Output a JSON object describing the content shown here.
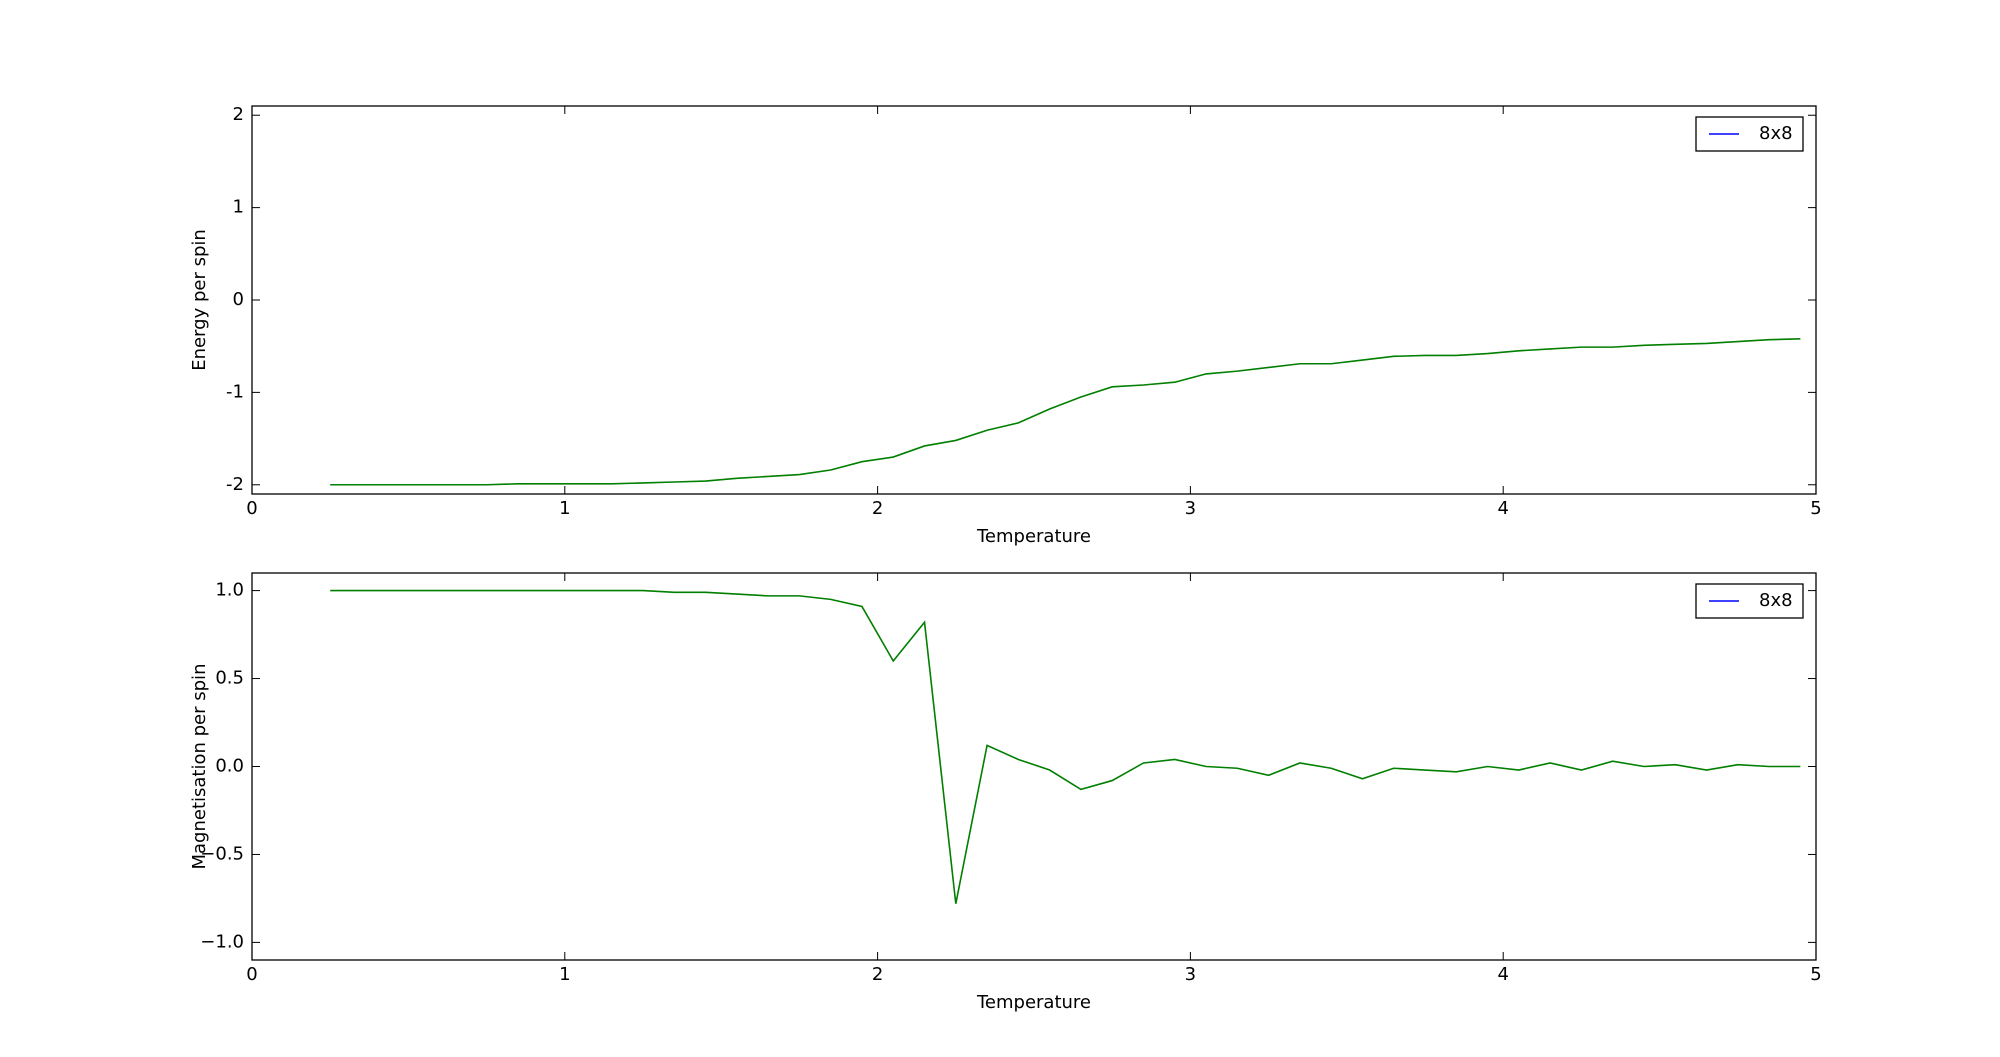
{
  "chart_data": [
    {
      "type": "line",
      "xlabel": "Temperature",
      "ylabel": "Energy per spin",
      "x": [
        0.25,
        0.35,
        0.45,
        0.55,
        0.65,
        0.75,
        0.85,
        0.95,
        1.05,
        1.15,
        1.25,
        1.35,
        1.45,
        1.55,
        1.65,
        1.75,
        1.85,
        1.95,
        2.05,
        2.15,
        2.25,
        2.35,
        2.45,
        2.55,
        2.65,
        2.75,
        2.85,
        2.95,
        3.05,
        3.15,
        3.25,
        3.35,
        3.45,
        3.55,
        3.65,
        3.75,
        3.85,
        3.95,
        4.05,
        4.15,
        4.25,
        4.35,
        4.45,
        4.55,
        4.65,
        4.75,
        4.85,
        4.95
      ],
      "series": [
        {
          "name": "8x8",
          "color": "#0000ff",
          "line_color": "#007f00",
          "values": [
            -2.0,
            -2.0,
            -2.0,
            -2.0,
            -2.0,
            -2.0,
            -1.99,
            -1.99,
            -1.99,
            -1.99,
            -1.98,
            -1.97,
            -1.96,
            -1.93,
            -1.91,
            -1.89,
            -1.84,
            -1.75,
            -1.7,
            -1.58,
            -1.52,
            -1.41,
            -1.33,
            -1.18,
            -1.05,
            -0.94,
            -0.92,
            -0.89,
            -0.8,
            -0.77,
            -0.73,
            -0.69,
            -0.69,
            -0.65,
            -0.61,
            -0.6,
            -0.6,
            -0.58,
            -0.55,
            -0.53,
            -0.51,
            -0.51,
            -0.49,
            -0.48,
            -0.47,
            -0.45,
            -0.43,
            -0.42
          ]
        }
      ],
      "xlim": [
        0,
        5
      ],
      "xticks": [
        0,
        1,
        2,
        3,
        4,
        5
      ],
      "ylim": [
        -2.1,
        2.1
      ],
      "yticks": [
        -2,
        -1,
        0,
        1,
        2
      ],
      "legend": "upper right"
    },
    {
      "type": "line",
      "xlabel": "Temperature",
      "ylabel": "Magnetisation per spin",
      "x": [
        0.25,
        0.35,
        0.45,
        0.55,
        0.65,
        0.75,
        0.85,
        0.95,
        1.05,
        1.15,
        1.25,
        1.35,
        1.45,
        1.55,
        1.65,
        1.75,
        1.85,
        1.95,
        2.05,
        2.15,
        2.25,
        2.35,
        2.45,
        2.55,
        2.65,
        2.75,
        2.85,
        2.95,
        3.05,
        3.15,
        3.25,
        3.35,
        3.45,
        3.55,
        3.65,
        3.75,
        3.85,
        3.95,
        4.05,
        4.15,
        4.25,
        4.35,
        4.45,
        4.55,
        4.65,
        4.75,
        4.85,
        4.95
      ],
      "series": [
        {
          "name": "8x8",
          "color": "#0000ff",
          "line_color": "#007f00",
          "values": [
            1.0,
            1.0,
            1.0,
            1.0,
            1.0,
            1.0,
            1.0,
            1.0,
            1.0,
            1.0,
            1.0,
            0.99,
            0.99,
            0.98,
            0.97,
            0.97,
            0.95,
            0.91,
            0.6,
            0.82,
            -0.78,
            0.12,
            0.04,
            -0.02,
            -0.13,
            -0.08,
            0.02,
            0.04,
            0.0,
            -0.01,
            -0.05,
            0.02,
            -0.01,
            -0.07,
            -0.01,
            -0.02,
            -0.03,
            0.0,
            -0.02,
            0.02,
            -0.02,
            0.03,
            0.0,
            0.01,
            -0.02,
            0.01,
            0.0,
            0.0
          ]
        }
      ],
      "xlim": [
        0,
        5
      ],
      "xticks": [
        0,
        1,
        2,
        3,
        4,
        5
      ],
      "ylim": [
        -1.1,
        1.1
      ],
      "yticks": [
        {
          "value": -1,
          "label": "−1.0"
        },
        {
          "value": -0.5,
          "label": "−0.5"
        },
        {
          "value": 0,
          "label": "0.0"
        },
        {
          "value": 0.5,
          "label": "0.5"
        },
        {
          "value": 1,
          "label": "1.0"
        }
      ],
      "legend": "upper right"
    }
  ]
}
